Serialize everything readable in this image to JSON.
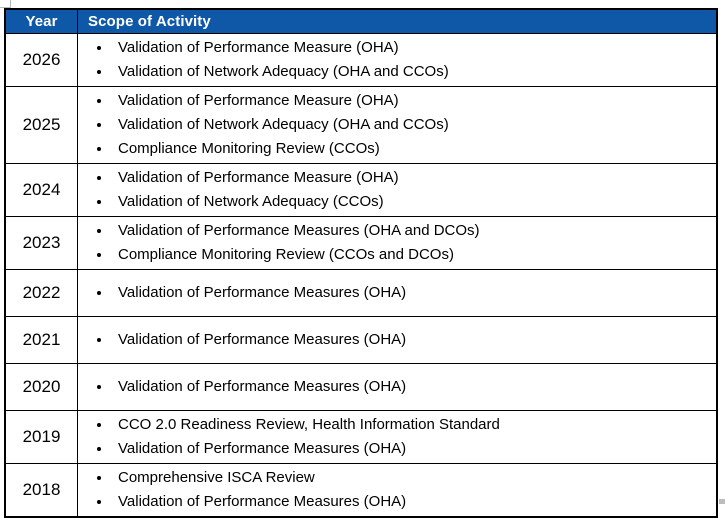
{
  "table": {
    "columns": [
      {
        "label": "Year"
      },
      {
        "label": "Scope of Activity"
      }
    ],
    "rows": [
      {
        "year": "2026",
        "activities": [
          "Validation of Performance Measure (OHA)",
          "Validation of Network Adequacy (OHA and CCOs)"
        ]
      },
      {
        "year": "2025",
        "activities": [
          "Validation of Performance Measure (OHA)",
          "Validation of Network Adequacy (OHA and CCOs)",
          "Compliance Monitoring Review (CCOs)"
        ]
      },
      {
        "year": "2024",
        "activities": [
          "Validation of Performance Measure (OHA)",
          "Validation of Network Adequacy (CCOs)"
        ]
      },
      {
        "year": "2023",
        "activities": [
          "Validation of Performance Measures (OHA and DCOs)",
          "Compliance Monitoring Review (CCOs and DCOs)"
        ]
      },
      {
        "year": "2022",
        "activities": [
          "Validation of Performance Measures (OHA)"
        ]
      },
      {
        "year": "2021",
        "activities": [
          "Validation of Performance Measures (OHA)"
        ]
      },
      {
        "year": "2020",
        "activities": [
          "Validation of Performance Measures (OHA)"
        ]
      },
      {
        "year": "2019",
        "activities": [
          "CCO 2.0 Readiness Review, Health Information Standard",
          "Validation of Performance Measures (OHA)"
        ]
      },
      {
        "year": "2018",
        "activities": [
          "Comprehensive ISCA Review",
          "Validation of Performance Measures (OHA)"
        ]
      }
    ]
  },
  "colors": {
    "header_bg": "#0F58A8",
    "header_text": "#FFFFFF",
    "body_text": "#000000",
    "border": "#000000"
  }
}
